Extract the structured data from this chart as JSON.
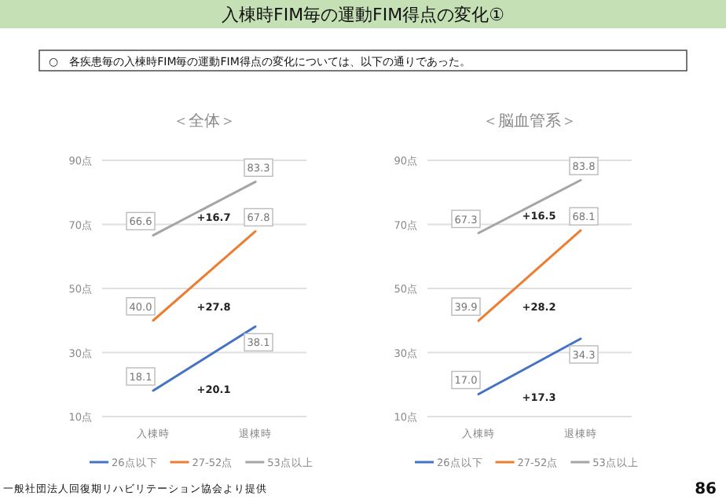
{
  "chart_data": [
    {
      "type": "line",
      "title": "＜全体＞",
      "categories": [
        "入棟時",
        "退棟時"
      ],
      "series": [
        {
          "name": "26点以下",
          "color": "#4472c4",
          "values": [
            18.1,
            38.1
          ],
          "value_labels": [
            "18.1",
            "38.1"
          ]
        },
        {
          "name": "27-52点",
          "color": "#ed7d31",
          "values": [
            40.0,
            67.8
          ],
          "value_labels": [
            "40.0",
            "67.8"
          ]
        },
        {
          "name": "53点以上",
          "color": "#a5a5a5",
          "values": [
            66.6,
            83.3
          ],
          "value_labels": [
            "66.6",
            "83.3"
          ]
        }
      ],
      "ylim": [
        10,
        90
      ],
      "yticks": [
        {
          "value": 10,
          "label": "10点"
        },
        {
          "value": 30,
          "label": "30点"
        },
        {
          "value": 50,
          "label": "50点"
        },
        {
          "value": 70,
          "label": "70点"
        },
        {
          "value": 90,
          "label": "90点"
        }
      ],
      "grid": "y",
      "legend": "bottom",
      "annotations": [
        "入棟時FIM毎の運動FIM得点の変化①",
        "○　各疾患毎の入棟時FIM毎の運動FIM得点の変化については、以下の通りであった。",
        "一般社団法人回復期リハビリテーション協会より提供",
        "86",
        "+20.1",
        "+27.8",
        "+16.7"
      ]
    },
    {
      "type": "line",
      "title": "＜脳血管系＞",
      "categories": [
        "入棟時",
        "退棟時"
      ],
      "series": [
        {
          "name": "26点以下",
          "color": "#4472c4",
          "values": [
            17.0,
            34.3
          ],
          "value_labels": [
            "17.0",
            "34.3"
          ]
        },
        {
          "name": "27-52点",
          "color": "#ed7d31",
          "values": [
            39.9,
            68.1
          ],
          "value_labels": [
            "39.9",
            "68.1"
          ]
        },
        {
          "name": "53点以上",
          "color": "#a5a5a5",
          "values": [
            67.3,
            83.8
          ],
          "value_labels": [
            "67.3",
            "83.8"
          ]
        }
      ],
      "ylim": [
        10,
        90
      ],
      "yticks": [
        {
          "value": 10,
          "label": "10点"
        },
        {
          "value": 30,
          "label": "30点"
        },
        {
          "value": 50,
          "label": "50点"
        },
        {
          "value": 70,
          "label": "70点"
        },
        {
          "value": 90,
          "label": "90点"
        }
      ],
      "grid": "y",
      "legend": "bottom",
      "annotations": [
        "+17.3",
        "+28.2",
        "+16.5"
      ]
    }
  ]
}
